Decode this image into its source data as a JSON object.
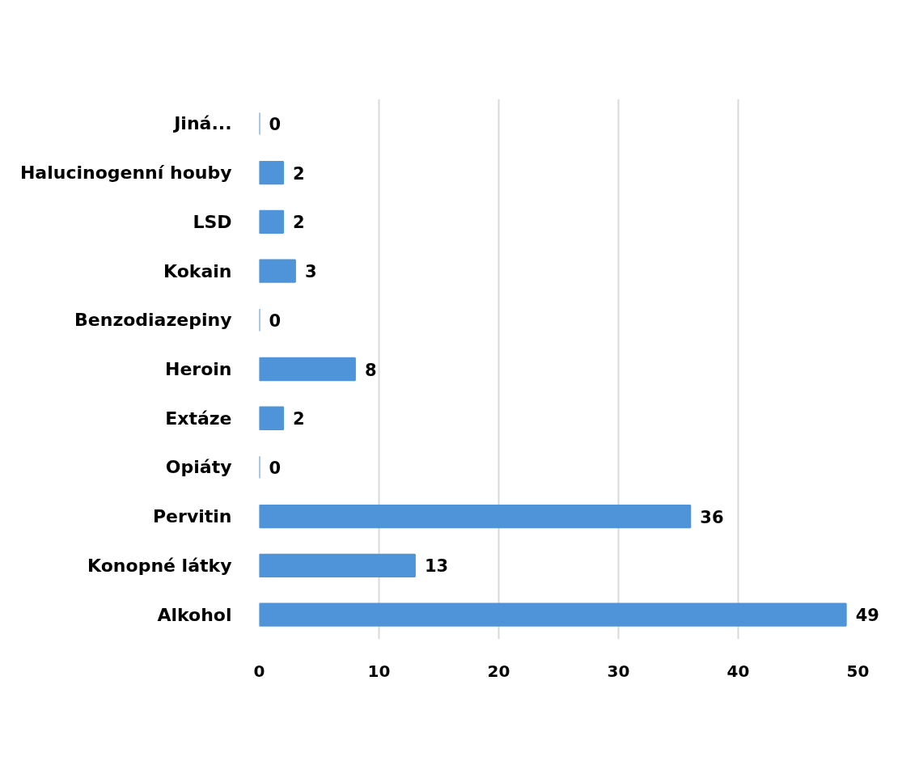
{
  "chart_data": {
    "type": "bar",
    "orientation": "horizontal",
    "categories": [
      "Jiná...",
      "Halucinogenní houby",
      "LSD",
      "Kokain",
      "Benzodiazepiny",
      "Heroin",
      "Extáze",
      "Opiáty",
      "Pervitin",
      "Konopné látky",
      "Alkohol"
    ],
    "values": [
      0,
      2,
      2,
      3,
      0,
      8,
      2,
      0,
      36,
      13,
      49
    ],
    "color": "#4f94d8",
    "xlim": [
      0,
      50
    ],
    "xticks": [
      0,
      10,
      20,
      30,
      40,
      50
    ],
    "grid": "x",
    "data_labels": true
  }
}
